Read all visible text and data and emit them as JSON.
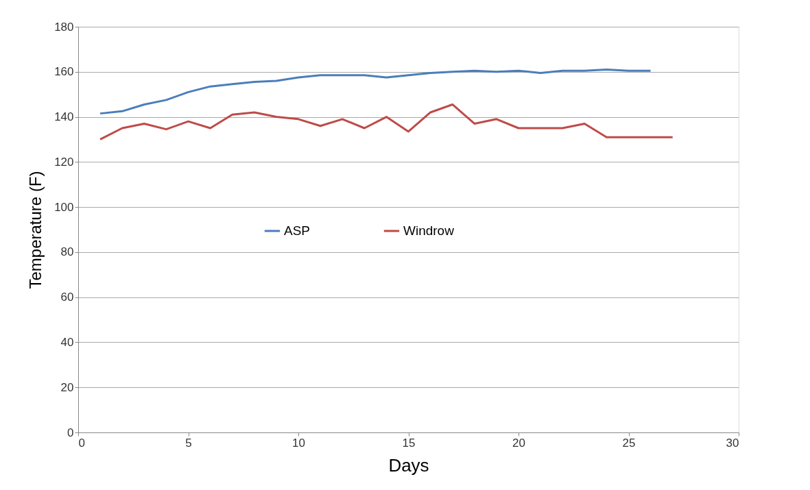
{
  "chart_data": {
    "type": "line",
    "xlabel": "Days",
    "ylabel": "Temperature (F)",
    "x": [
      1,
      2,
      3,
      4,
      5,
      6,
      7,
      8,
      9,
      10,
      11,
      12,
      13,
      14,
      15,
      16,
      17,
      18,
      19,
      20,
      21,
      22,
      23,
      24,
      25,
      26,
      27
    ],
    "series": [
      {
        "name": "ASP",
        "color": "#4a7ebb",
        "values": [
          141.5,
          142.5,
          145.5,
          147.5,
          151,
          153.5,
          154.5,
          155.5,
          156,
          157.5,
          158.5,
          158.5,
          158.5,
          157.5,
          158.5,
          159.5,
          160,
          160.5,
          160,
          160.5,
          159.5,
          160.5,
          160.5,
          161,
          160.5,
          160.5,
          null
        ]
      },
      {
        "name": "Windrow",
        "color": "#be4b48",
        "values": [
          130,
          135,
          137,
          134.5,
          138,
          135,
          141,
          142,
          140,
          139,
          136,
          139,
          135,
          140,
          133.5,
          142,
          145.5,
          137,
          139,
          135,
          135,
          135,
          137,
          131,
          131,
          131,
          131
        ]
      }
    ],
    "xlim": [
      0,
      30
    ],
    "xticks": [
      0,
      5,
      10,
      15,
      20,
      25,
      30
    ],
    "ylim": [
      0,
      180
    ],
    "yticks": [
      0,
      20,
      40,
      60,
      80,
      100,
      120,
      140,
      160,
      180
    ],
    "grid": "y",
    "legend": "center",
    "marker": "none",
    "line_style": "solid"
  }
}
